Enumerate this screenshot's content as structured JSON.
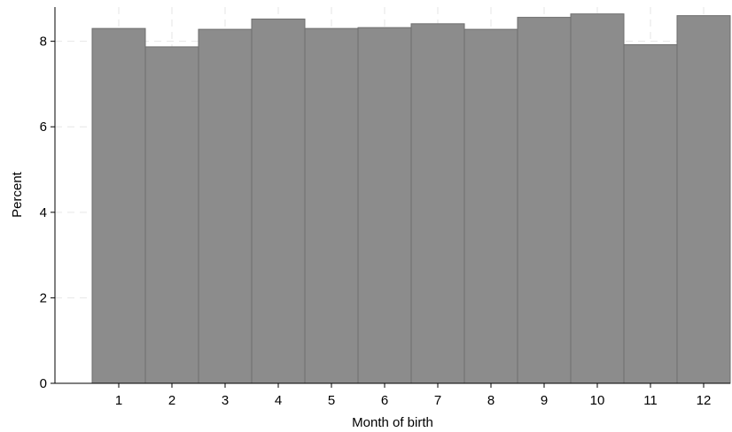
{
  "chart_data": {
    "type": "bar",
    "xlabel": "Month of birth",
    "ylabel": "Percent",
    "categories": [
      "1",
      "2",
      "3",
      "4",
      "5",
      "6",
      "7",
      "8",
      "9",
      "10",
      "11",
      "12"
    ],
    "values": [
      8.3,
      7.87,
      8.28,
      8.52,
      8.3,
      8.32,
      8.41,
      8.28,
      8.56,
      8.64,
      7.92,
      8.6
    ],
    "ylim": [
      0,
      8.8
    ],
    "yticks": [
      "0",
      "2",
      "4",
      "6",
      "8"
    ],
    "grid": true,
    "legend": "none",
    "colors": {
      "bar_fill": "#8c8c8c",
      "bar_edge": "#6e6e6e",
      "grid": "#e6e6e6"
    }
  }
}
